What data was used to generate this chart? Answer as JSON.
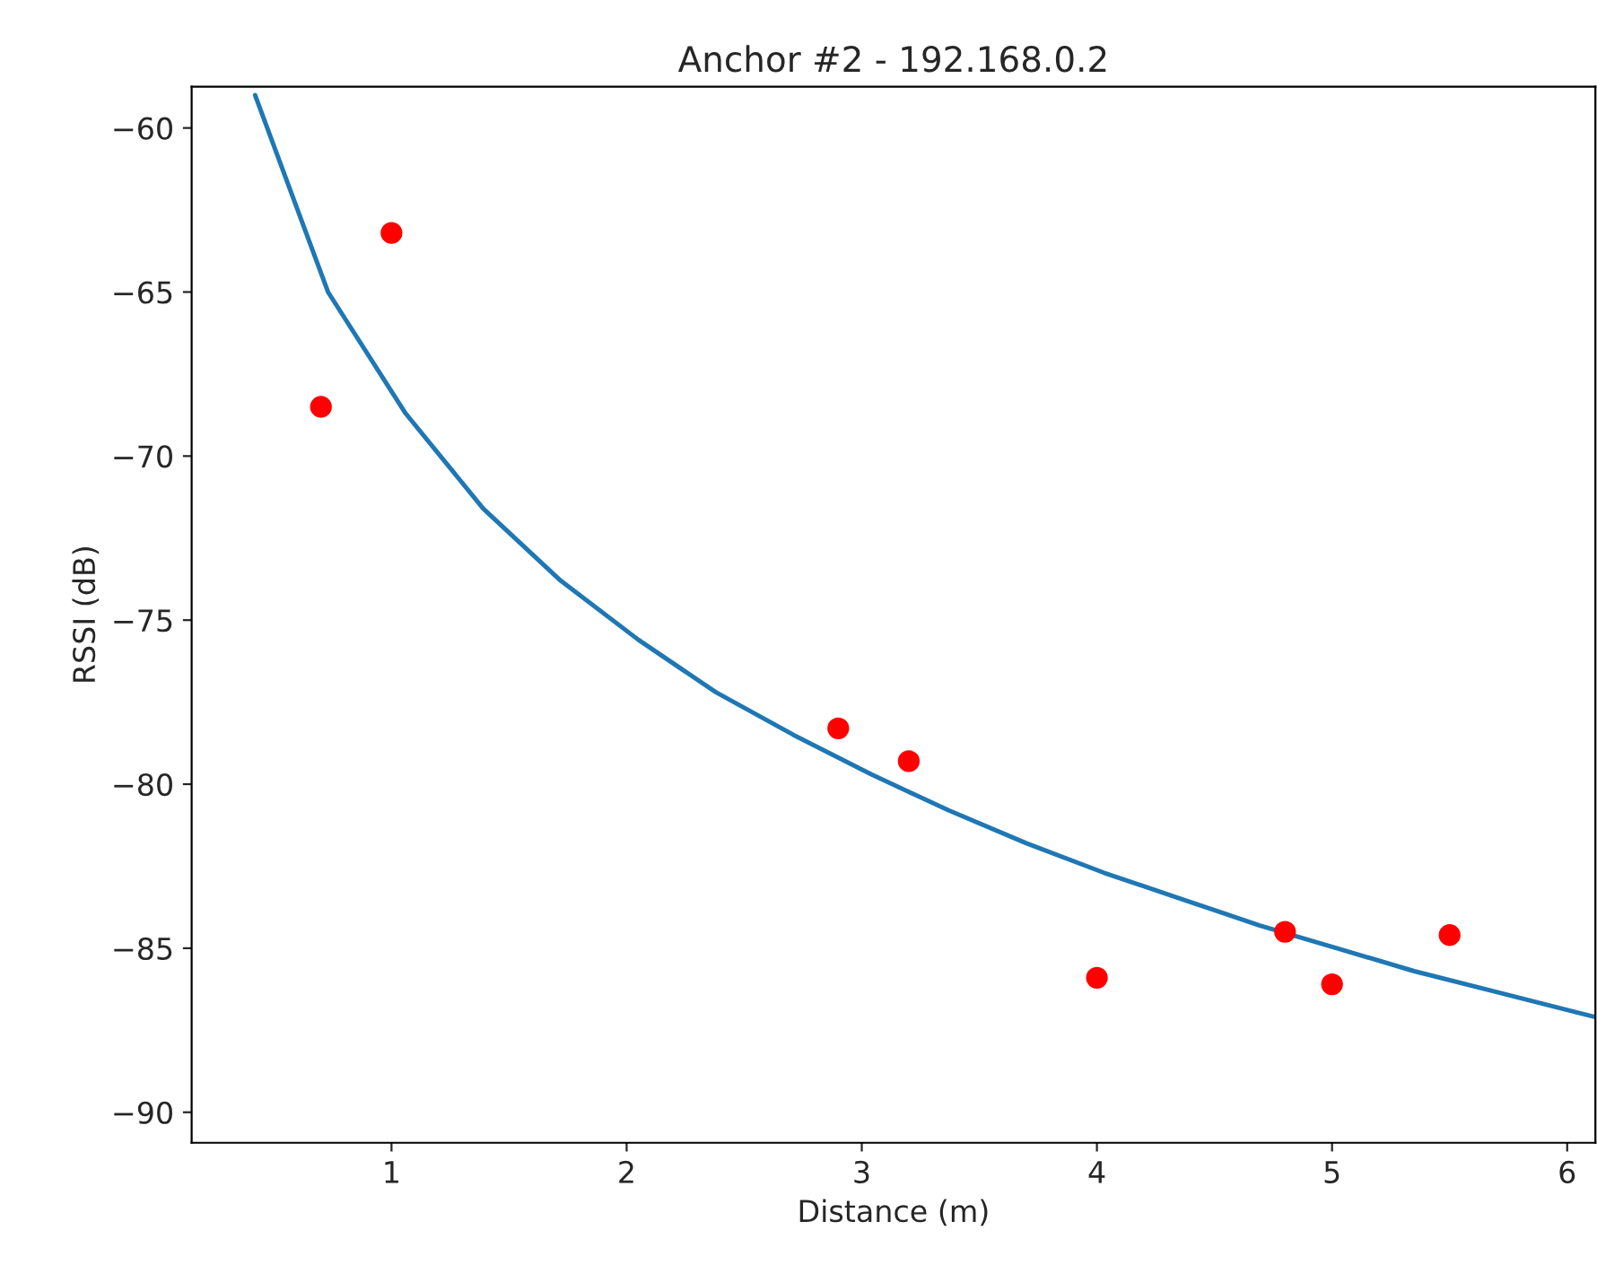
{
  "chart_data": {
    "type": "scatter",
    "title": "Anchor #2 - 192.168.0.2",
    "xlabel": "Distance (m)",
    "ylabel": "RSSI (dB)",
    "xlim": [
      0.15,
      6.12
    ],
    "ylim": [
      -90.93,
      -58.74
    ],
    "xticks": [
      1,
      2,
      3,
      4,
      5,
      6
    ],
    "yticks": [
      -90,
      -85,
      -80,
      -75,
      -70,
      -65,
      -60
    ],
    "grid": false,
    "legend": false,
    "series": [
      {
        "color": "#ff0000",
        "marker": "circle",
        "x": [
          0.7,
          1.0,
          2.9,
          3.2,
          4.0,
          4.8,
          5.0,
          5.5
        ],
        "values": [
          -68.5,
          -63.2,
          -78.3,
          -79.3,
          -85.9,
          -84.5,
          -86.1,
          -84.6
        ]
      },
      {
        "type": "line",
        "color": "#1f77b4",
        "marker": "none",
        "line_style": "solid",
        "x": [
          0.42,
          0.73,
          1.06,
          1.39,
          1.72,
          2.05,
          2.38,
          2.71,
          3.04,
          3.37,
          3.7,
          4.03,
          4.36,
          4.69,
          5.02,
          5.35,
          5.68,
          6.01,
          6.12
        ],
        "values": [
          -59.0,
          -65.0,
          -68.7,
          -71.6,
          -73.8,
          -75.6,
          -77.2,
          -78.5,
          -79.7,
          -80.8,
          -81.8,
          -82.7,
          -83.5,
          -84.3,
          -85.0,
          -85.7,
          -86.3,
          -86.9,
          -87.1
        ]
      }
    ]
  }
}
